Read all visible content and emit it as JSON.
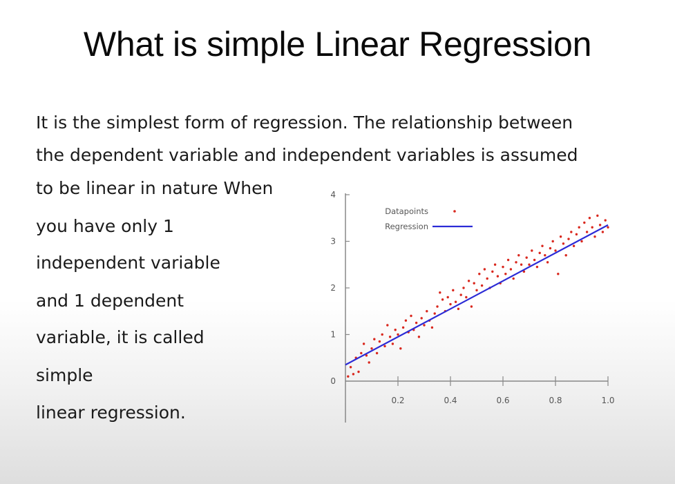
{
  "slide": {
    "title": "What is simple Linear Regression",
    "lines": [
      "It is the simplest form of regression. The relationship between",
      "the dependent variable and independent variables is assumed",
      "to be linear in nature When",
      "you have only 1",
      "independent variable",
      "and 1 dependent",
      "variable, it is called",
      "simple",
      "linear regression."
    ]
  },
  "chart_data": {
    "type": "scatter",
    "title": "",
    "xlabel": "",
    "ylabel": "",
    "xlim": [
      0,
      1.0
    ],
    "ylim": [
      0,
      4
    ],
    "x_ticks": [
      "0.2",
      "0.4",
      "0.6",
      "0.8",
      "1.0"
    ],
    "y_ticks": [
      "0",
      "1",
      "2",
      "3",
      "4"
    ],
    "legend": {
      "position": "top-left",
      "entries": [
        "Datapoints",
        "Regression"
      ]
    },
    "colors": {
      "points": "#d9281e",
      "line": "#2b2bd6",
      "axis": "#888888"
    },
    "series": [
      {
        "name": "Datapoints",
        "points": [
          [
            0.01,
            0.1
          ],
          [
            0.02,
            0.3
          ],
          [
            0.03,
            0.15
          ],
          [
            0.04,
            0.5
          ],
          [
            0.05,
            0.2
          ],
          [
            0.06,
            0.6
          ],
          [
            0.07,
            0.8
          ],
          [
            0.08,
            0.55
          ],
          [
            0.09,
            0.4
          ],
          [
            0.1,
            0.7
          ],
          [
            0.11,
            0.9
          ],
          [
            0.12,
            0.6
          ],
          [
            0.13,
            0.85
          ],
          [
            0.14,
            1.0
          ],
          [
            0.15,
            0.75
          ],
          [
            0.16,
            1.2
          ],
          [
            0.17,
            0.95
          ],
          [
            0.18,
            0.8
          ],
          [
            0.19,
            1.1
          ],
          [
            0.2,
            1.0
          ],
          [
            0.21,
            0.7
          ],
          [
            0.22,
            1.15
          ],
          [
            0.23,
            1.3
          ],
          [
            0.24,
            1.05
          ],
          [
            0.25,
            1.4
          ],
          [
            0.26,
            1.1
          ],
          [
            0.27,
            1.25
          ],
          [
            0.28,
            0.95
          ],
          [
            0.29,
            1.35
          ],
          [
            0.3,
            1.2
          ],
          [
            0.31,
            1.5
          ],
          [
            0.32,
            1.3
          ],
          [
            0.33,
            1.15
          ],
          [
            0.34,
            1.45
          ],
          [
            0.35,
            1.6
          ],
          [
            0.36,
            1.9
          ],
          [
            0.37,
            1.75
          ],
          [
            0.38,
            1.5
          ],
          [
            0.39,
            1.8
          ],
          [
            0.4,
            1.65
          ],
          [
            0.41,
            1.95
          ],
          [
            0.42,
            1.7
          ],
          [
            0.43,
            1.55
          ],
          [
            0.44,
            1.85
          ],
          [
            0.45,
            2.0
          ],
          [
            0.46,
            1.8
          ],
          [
            0.47,
            2.15
          ],
          [
            0.48,
            1.6
          ],
          [
            0.49,
            2.1
          ],
          [
            0.5,
            1.95
          ],
          [
            0.51,
            2.3
          ],
          [
            0.52,
            2.05
          ],
          [
            0.53,
            2.4
          ],
          [
            0.54,
            2.2
          ],
          [
            0.55,
            2.0
          ],
          [
            0.56,
            2.35
          ],
          [
            0.57,
            2.5
          ],
          [
            0.58,
            2.25
          ],
          [
            0.59,
            2.1
          ],
          [
            0.6,
            2.45
          ],
          [
            0.61,
            2.3
          ],
          [
            0.62,
            2.6
          ],
          [
            0.63,
            2.4
          ],
          [
            0.64,
            2.2
          ],
          [
            0.65,
            2.55
          ],
          [
            0.66,
            2.7
          ],
          [
            0.67,
            2.5
          ],
          [
            0.68,
            2.35
          ],
          [
            0.69,
            2.65
          ],
          [
            0.7,
            2.5
          ],
          [
            0.71,
            2.8
          ],
          [
            0.72,
            2.6
          ],
          [
            0.73,
            2.45
          ],
          [
            0.74,
            2.75
          ],
          [
            0.75,
            2.9
          ],
          [
            0.76,
            2.7
          ],
          [
            0.77,
            2.55
          ],
          [
            0.78,
            2.85
          ],
          [
            0.79,
            3.0
          ],
          [
            0.8,
            2.8
          ],
          [
            0.81,
            2.3
          ],
          [
            0.82,
            3.1
          ],
          [
            0.83,
            2.95
          ],
          [
            0.84,
            2.7
          ],
          [
            0.85,
            3.05
          ],
          [
            0.86,
            3.2
          ],
          [
            0.87,
            2.9
          ],
          [
            0.88,
            3.15
          ],
          [
            0.89,
            3.3
          ],
          [
            0.9,
            3.0
          ],
          [
            0.91,
            3.4
          ],
          [
            0.92,
            3.2
          ],
          [
            0.93,
            3.5
          ],
          [
            0.94,
            3.3
          ],
          [
            0.95,
            3.1
          ],
          [
            0.96,
            3.55
          ],
          [
            0.97,
            3.35
          ],
          [
            0.98,
            3.2
          ],
          [
            0.99,
            3.45
          ],
          [
            1.0,
            3.3
          ]
        ]
      },
      {
        "name": "Regression",
        "line": [
          [
            0,
            0.35
          ],
          [
            1.0,
            3.35
          ]
        ]
      }
    ]
  }
}
